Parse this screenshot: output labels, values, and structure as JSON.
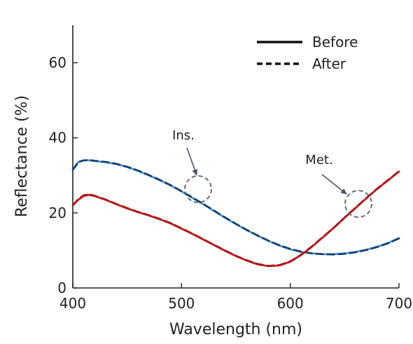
{
  "colors": {
    "insulating_before": "#3d9be0",
    "insulating_after": "#1e3c64",
    "metallic_before": "#c01a1f",
    "metallic_after": "#a81a1e",
    "marker_circle": "#556070",
    "arrow": "#4a5566",
    "axis": "#222222"
  },
  "chart_data": {
    "type": "line",
    "title": "",
    "xlabel": "Wavelength (nm)",
    "ylabel": "Reflectance (%)",
    "xlim": [
      400,
      700
    ],
    "ylim": [
      0,
      70
    ],
    "xticks": [
      400,
      500,
      600,
      700
    ],
    "yticks": [
      0,
      20,
      40,
      60
    ],
    "grid": false,
    "legend": {
      "placement": "top-right",
      "entries": [
        {
          "label": "Before",
          "style": "solid"
        },
        {
          "label": "After",
          "style": "dashed"
        }
      ]
    },
    "series": [
      {
        "state": "insulating",
        "style": "solid",
        "color_key": "insulating_before",
        "x": [
          400,
          403,
          405,
          410,
          415,
          420,
          430,
          440,
          450,
          460,
          470,
          480,
          490,
          500,
          510,
          520,
          530,
          540,
          550,
          560,
          570,
          580,
          590,
          600,
          610,
          620,
          630,
          640,
          650,
          660,
          670,
          680,
          690,
          700
        ],
        "y": [
          31.5,
          32.5,
          33.5,
          34.0,
          34.0,
          33.8,
          33.5,
          33.0,
          32.2,
          31.2,
          30.0,
          28.7,
          27.3,
          25.7,
          24.0,
          22.3,
          20.5,
          18.7,
          17.0,
          15.4,
          13.9,
          12.5,
          11.3,
          10.3,
          9.6,
          9.2,
          9.0,
          9.0,
          9.2,
          9.6,
          10.2,
          11.0,
          12.0,
          13.3
        ]
      },
      {
        "state": "insulating",
        "style": "dashed",
        "color_key": "insulating_after",
        "x": [
          400,
          403,
          405,
          410,
          415,
          420,
          430,
          440,
          450,
          460,
          470,
          480,
          490,
          500,
          510,
          520,
          530,
          540,
          550,
          560,
          570,
          580,
          590,
          600,
          610,
          620,
          630,
          640,
          650,
          660,
          670,
          680,
          690,
          700
        ],
        "y": [
          31.5,
          32.8,
          33.6,
          34.0,
          34.1,
          33.9,
          33.6,
          33.1,
          32.3,
          31.3,
          30.1,
          28.8,
          27.4,
          25.8,
          24.1,
          22.4,
          20.6,
          18.8,
          17.1,
          15.5,
          14.0,
          12.6,
          11.4,
          10.4,
          9.7,
          9.2,
          9.0,
          8.9,
          9.1,
          9.5,
          10.1,
          10.9,
          11.9,
          13.2
        ]
      },
      {
        "state": "metallic",
        "style": "solid",
        "color_key": "metallic_before",
        "x": [
          400,
          405,
          410,
          415,
          420,
          430,
          440,
          450,
          460,
          470,
          480,
          490,
          500,
          510,
          520,
          530,
          540,
          550,
          560,
          570,
          580,
          590,
          600,
          610,
          620,
          630,
          640,
          650,
          660,
          670,
          680,
          690,
          700
        ],
        "y": [
          22.0,
          23.5,
          24.5,
          24.8,
          24.5,
          23.5,
          22.3,
          21.2,
          20.2,
          19.3,
          18.3,
          17.2,
          15.8,
          14.4,
          12.9,
          11.4,
          9.9,
          8.5,
          7.3,
          6.3,
          5.8,
          6.0,
          7.0,
          8.8,
          11.0,
          13.5,
          16.0,
          18.7,
          21.3,
          23.9,
          26.4,
          28.7,
          31.0
        ]
      },
      {
        "state": "metallic",
        "style": "dashed",
        "color_key": "metallic_after",
        "x": [
          400,
          405,
          410,
          415,
          420,
          430,
          440,
          450,
          460,
          470,
          480,
          490,
          500,
          510,
          520,
          530,
          540,
          550,
          560,
          570,
          580,
          590,
          600,
          610,
          620,
          630,
          640,
          650,
          660,
          670,
          680,
          690,
          700
        ],
        "y": [
          22.0,
          23.7,
          24.7,
          25.0,
          24.6,
          23.6,
          22.4,
          21.3,
          20.3,
          19.4,
          18.4,
          17.3,
          15.9,
          14.5,
          13.0,
          11.5,
          10.0,
          8.6,
          7.4,
          6.4,
          5.9,
          6.1,
          7.1,
          8.9,
          11.1,
          13.6,
          16.1,
          18.8,
          21.4,
          24.0,
          26.5,
          28.8,
          31.1
        ]
      }
    ],
    "annotations": [
      {
        "text": "Ins.",
        "target": {
          "x": 517,
          "y": 26.5
        }
      },
      {
        "text": "Met.",
        "target": {
          "x": 662,
          "y": 22.5
        }
      }
    ]
  }
}
